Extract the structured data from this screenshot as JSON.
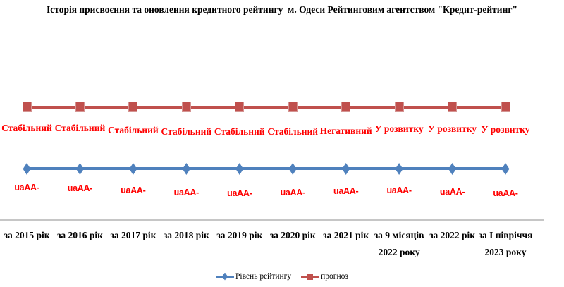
{
  "title": "Історія присвоєння та оновлення кредитного рейтингу  м. Одеси Рейтинговим агентством \"Кредит-рейтинг\"",
  "colors": {
    "rating_series": "#4F81BD",
    "forecast_series": "#C0504D",
    "label_red": "#FF0000",
    "axis_line": "#C6C6C6",
    "text": "#000000"
  },
  "legend": {
    "rating": "Рівень рейтингу",
    "forecast": "прогноз"
  },
  "chart_data": {
    "type": "line",
    "title": "Історія присвоєння та оновлення кредитного рейтингу  м. Одеси Рейтинговим агентством \"Кредит-рейтинг\"",
    "categories": [
      "за 2015 рік",
      "за 2016 рік",
      "за 2017 рік",
      "за 2018 рік",
      "за 2019 рік",
      "за 2020 рік",
      "за 2021 рік",
      "за 9 місяців\n2022 року",
      "за 2022 рік",
      "за І півріччя\n2023 року"
    ],
    "series": [
      {
        "name": "Рівень рейтингу",
        "marker": "diamond",
        "color": "#4F81BD",
        "values": [
          "uaAA-",
          "uaAA-",
          "uaAA-",
          "uaAA-",
          "uaAA-",
          "uaAA-",
          "uaAA-",
          "uaAA-",
          "uaAA-",
          "uaAA-"
        ]
      },
      {
        "name": "прогноз",
        "marker": "square",
        "color": "#C0504D",
        "values": [
          "Стабільний",
          "Стабільний",
          "Стабільний",
          "Стабільний",
          "Стабільний",
          "Стабільний",
          "Негативний",
          "У розвитку",
          "У розвитку",
          "У розвитку"
        ]
      }
    ],
    "legend_position": "bottom",
    "grid": false,
    "xlabel": "",
    "ylabel": ""
  }
}
